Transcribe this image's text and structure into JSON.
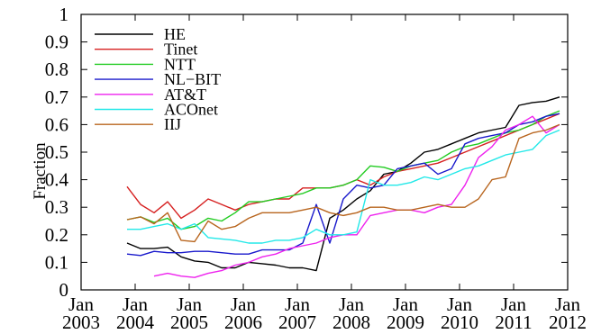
{
  "chart_data": {
    "type": "line",
    "title": "",
    "xlabel": "",
    "ylabel": "Fraction",
    "xlim": [
      2003.0,
      2012.0
    ],
    "ylim": [
      0,
      1
    ],
    "grid": false,
    "legend_placement": "top-left",
    "x_ticks": [
      {
        "value": 2003,
        "line1": "Jan",
        "line2": "2003"
      },
      {
        "value": 2004,
        "line1": "Jan",
        "line2": "2004"
      },
      {
        "value": 2005,
        "line1": "Jan",
        "line2": "2005"
      },
      {
        "value": 2006,
        "line1": "Jan",
        "line2": "2006"
      },
      {
        "value": 2007,
        "line1": "Jan",
        "line2": "2007"
      },
      {
        "value": 2008,
        "line1": "Jan",
        "line2": "2008"
      },
      {
        "value": 2009,
        "line1": "Jan",
        "line2": "2009"
      },
      {
        "value": 2010,
        "line1": "Jan",
        "line2": "2010"
      },
      {
        "value": 2011,
        "line1": "Jan",
        "line2": "2011"
      },
      {
        "value": 2012,
        "line1": "Jan",
        "line2": "2012"
      }
    ],
    "y_ticks": [
      {
        "value": 0,
        "label": "0"
      },
      {
        "value": 0.1,
        "label": "0.1"
      },
      {
        "value": 0.2,
        "label": "0.2"
      },
      {
        "value": 0.3,
        "label": "0.3"
      },
      {
        "value": 0.4,
        "label": "0.4"
      },
      {
        "value": 0.5,
        "label": "0.5"
      },
      {
        "value": 0.6,
        "label": "0.6"
      },
      {
        "value": 0.7,
        "label": "0.7"
      },
      {
        "value": 0.8,
        "label": "0.8"
      },
      {
        "value": 0.9,
        "label": "0.9"
      },
      {
        "value": 1,
        "label": "1"
      }
    ],
    "series": [
      {
        "name": "HE",
        "color": "#000000",
        "x": [
          2003.85,
          2004.1,
          2004.35,
          2004.6,
          2004.85,
          2005.1,
          2005.35,
          2005.6,
          2005.85,
          2006.1,
          2006.35,
          2006.6,
          2006.85,
          2007.1,
          2007.35,
          2007.6,
          2007.85,
          2008.1,
          2008.35,
          2008.6,
          2008.85,
          2009.1,
          2009.35,
          2009.6,
          2009.85,
          2010.1,
          2010.35,
          2010.6,
          2010.85,
          2011.1,
          2011.35,
          2011.6,
          2011.85
        ],
        "y": [
          0.17,
          0.15,
          0.15,
          0.155,
          0.12,
          0.105,
          0.1,
          0.08,
          0.08,
          0.1,
          0.095,
          0.09,
          0.08,
          0.08,
          0.07,
          0.26,
          0.29,
          0.33,
          0.36,
          0.42,
          0.43,
          0.46,
          0.5,
          0.51,
          0.53,
          0.55,
          0.57,
          0.58,
          0.59,
          0.67,
          0.68,
          0.685,
          0.7
        ]
      },
      {
        "name": "Tinet",
        "color": "#d62020",
        "x": [
          2003.85,
          2004.1,
          2004.35,
          2004.6,
          2004.85,
          2005.1,
          2005.35,
          2005.6,
          2005.85,
          2006.1,
          2006.35,
          2006.6,
          2006.85,
          2007.1,
          2007.35,
          2007.6,
          2007.85,
          2008.1,
          2008.35,
          2008.6,
          2008.85,
          2009.1,
          2009.35,
          2009.6,
          2009.85,
          2010.1,
          2010.35,
          2010.6,
          2010.85,
          2011.1,
          2011.35,
          2011.6,
          2011.85
        ],
        "y": [
          0.375,
          0.31,
          0.28,
          0.32,
          0.26,
          0.29,
          0.33,
          0.31,
          0.29,
          0.31,
          0.32,
          0.33,
          0.33,
          0.37,
          0.37,
          0.37,
          0.38,
          0.4,
          0.38,
          0.41,
          0.43,
          0.44,
          0.45,
          0.46,
          0.48,
          0.5,
          0.52,
          0.54,
          0.56,
          0.58,
          0.6,
          0.62,
          0.64
        ]
      },
      {
        "name": "NTT",
        "color": "#22cc22",
        "x": [
          2003.85,
          2004.1,
          2004.35,
          2004.6,
          2004.85,
          2005.1,
          2005.35,
          2005.6,
          2005.85,
          2006.1,
          2006.35,
          2006.6,
          2006.85,
          2007.1,
          2007.35,
          2007.6,
          2007.85,
          2008.1,
          2008.35,
          2008.6,
          2008.85,
          2009.1,
          2009.35,
          2009.6,
          2009.85,
          2010.1,
          2010.35,
          2010.6,
          2010.85,
          2011.1,
          2011.35,
          2011.6,
          2011.85
        ],
        "y": [
          0.255,
          0.265,
          0.245,
          0.26,
          0.22,
          0.23,
          0.26,
          0.25,
          0.28,
          0.32,
          0.32,
          0.33,
          0.34,
          0.35,
          0.37,
          0.37,
          0.38,
          0.4,
          0.45,
          0.445,
          0.43,
          0.45,
          0.46,
          0.47,
          0.5,
          0.52,
          0.53,
          0.55,
          0.57,
          0.58,
          0.6,
          0.63,
          0.65
        ]
      },
      {
        "name": "NL−BIT",
        "color": "#1a1acc",
        "x": [
          2003.85,
          2004.1,
          2004.35,
          2004.6,
          2004.85,
          2005.1,
          2005.35,
          2005.6,
          2005.85,
          2006.1,
          2006.35,
          2006.6,
          2006.85,
          2007.1,
          2007.35,
          2007.6,
          2007.85,
          2008.1,
          2008.35,
          2008.6,
          2008.85,
          2009.1,
          2009.35,
          2009.6,
          2009.85,
          2010.1,
          2010.35,
          2010.6,
          2010.85,
          2011.1,
          2011.35,
          2011.6,
          2011.85
        ],
        "y": [
          0.13,
          0.125,
          0.14,
          0.135,
          0.135,
          0.14,
          0.14,
          0.135,
          0.13,
          0.13,
          0.145,
          0.145,
          0.145,
          0.17,
          0.31,
          0.17,
          0.33,
          0.38,
          0.37,
          0.38,
          0.44,
          0.45,
          0.46,
          0.42,
          0.44,
          0.53,
          0.55,
          0.56,
          0.57,
          0.6,
          0.61,
          0.63,
          0.64
        ]
      },
      {
        "name": "AT&T",
        "color": "#ee22ee",
        "x": [
          2004.35,
          2004.6,
          2004.85,
          2005.1,
          2005.35,
          2005.6,
          2005.85,
          2006.1,
          2006.35,
          2006.6,
          2006.85,
          2007.1,
          2007.35,
          2007.6,
          2007.85,
          2008.1,
          2008.35,
          2008.6,
          2008.85,
          2009.1,
          2009.35,
          2009.6,
          2009.85,
          2010.1,
          2010.35,
          2010.6,
          2010.85,
          2011.1,
          2011.35,
          2011.6,
          2011.85
        ],
        "y": [
          0.05,
          0.06,
          0.05,
          0.045,
          0.06,
          0.07,
          0.09,
          0.1,
          0.12,
          0.13,
          0.15,
          0.16,
          0.17,
          0.19,
          0.2,
          0.2,
          0.27,
          0.28,
          0.29,
          0.29,
          0.28,
          0.3,
          0.31,
          0.38,
          0.48,
          0.52,
          0.58,
          0.6,
          0.63,
          0.57,
          0.6
        ]
      },
      {
        "name": "ACOnet",
        "color": "#22e8e8",
        "x": [
          2003.85,
          2004.1,
          2004.35,
          2004.6,
          2004.85,
          2005.1,
          2005.35,
          2005.6,
          2005.85,
          2006.1,
          2006.35,
          2006.6,
          2006.85,
          2007.1,
          2007.35,
          2007.6,
          2007.85,
          2008.1,
          2008.35,
          2008.6,
          2008.85,
          2009.1,
          2009.35,
          2009.6,
          2009.85,
          2010.1,
          2010.35,
          2010.6,
          2010.85,
          2011.1,
          2011.35,
          2011.6,
          2011.85
        ],
        "y": [
          0.22,
          0.22,
          0.23,
          0.24,
          0.22,
          0.24,
          0.19,
          0.185,
          0.18,
          0.17,
          0.17,
          0.18,
          0.18,
          0.19,
          0.22,
          0.2,
          0.2,
          0.21,
          0.4,
          0.38,
          0.38,
          0.39,
          0.41,
          0.4,
          0.42,
          0.44,
          0.45,
          0.47,
          0.49,
          0.5,
          0.51,
          0.56,
          0.58
        ]
      },
      {
        "name": "IIJ",
        "color": "#b8651e",
        "x": [
          2003.85,
          2004.1,
          2004.35,
          2004.6,
          2004.85,
          2005.1,
          2005.35,
          2005.6,
          2005.85,
          2006.1,
          2006.35,
          2006.6,
          2006.85,
          2007.1,
          2007.35,
          2007.6,
          2007.85,
          2008.1,
          2008.35,
          2008.6,
          2008.85,
          2009.1,
          2009.35,
          2009.6,
          2009.85,
          2010.1,
          2010.35,
          2010.6,
          2010.85,
          2011.1,
          2011.35,
          2011.6,
          2011.85
        ],
        "y": [
          0.255,
          0.265,
          0.24,
          0.28,
          0.18,
          0.175,
          0.25,
          0.22,
          0.23,
          0.26,
          0.28,
          0.28,
          0.28,
          0.29,
          0.3,
          0.28,
          0.27,
          0.28,
          0.3,
          0.3,
          0.29,
          0.29,
          0.3,
          0.31,
          0.3,
          0.3,
          0.33,
          0.4,
          0.41,
          0.55,
          0.57,
          0.58,
          0.6
        ]
      }
    ]
  }
}
